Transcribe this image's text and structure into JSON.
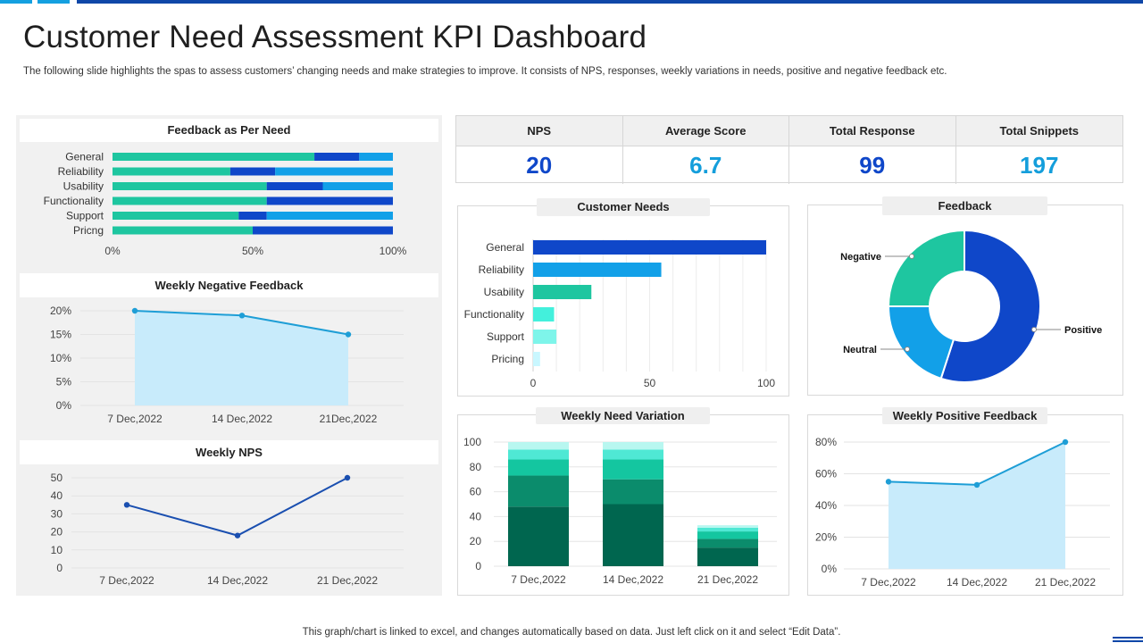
{
  "header": {
    "title": "Customer Need Assessment KPI Dashboard",
    "subtitle": "The following slide highlights the spas to assess customers’ changing needs and make strategies to improve. It consists of NPS, responses, weekly variations in needs, positive and negative feedback etc."
  },
  "colors": {
    "dark_blue": "#0f47c9",
    "mid_blue": "#12a0e8",
    "teal": "#1ec6a0",
    "cyan_light": "#43f0dc",
    "area_fill": "#c8ebfb",
    "line": "#1e9ed6",
    "nps_line": "#1a4fb0",
    "kpi_dark": "#0f47c9",
    "kpi_light": "#149edb"
  },
  "kpis": [
    {
      "label": "NPS",
      "value": "20",
      "color": "#0f47c9"
    },
    {
      "label": "Average Score",
      "value": "6.7",
      "color": "#149edb"
    },
    {
      "label": "Total Response",
      "value": "99",
      "color": "#0f47c9"
    },
    {
      "label": "Total Snippets",
      "value": "197",
      "color": "#149edb"
    }
  ],
  "sections": {
    "feedback_per_need": "Feedback as Per Need",
    "weekly_negative": "Weekly Negative Feedback",
    "weekly_nps": "Weekly NPS",
    "customer_needs": "Customer Needs",
    "feedback": "Feedback",
    "weekly_need_variation": "Weekly Need Variation",
    "weekly_positive": "Weekly Positive Feedback"
  },
  "footer": "This graph/chart is linked to excel,  and changes automatically based on data. Just left click on it and select “Edit Data”.",
  "chart_data": [
    {
      "id": "feedback_per_need",
      "type": "bar",
      "orientation": "horizontal-stacked-100",
      "title": "Feedback as Per Need",
      "categories": [
        "General",
        "Reliability",
        "Usability",
        "Functionality",
        "Support",
        "Pricng"
      ],
      "series": [
        {
          "name": "Series 1",
          "color": "#1ec6a0",
          "values": [
            72,
            42,
            55,
            55,
            45,
            50
          ]
        },
        {
          "name": "Series 2",
          "color": "#0f47c9",
          "values": [
            16,
            16,
            20,
            45,
            10,
            50
          ]
        },
        {
          "name": "Series 3",
          "color": "#12a0e8",
          "values": [
            12,
            42,
            25,
            0,
            45,
            0
          ]
        }
      ],
      "xticks": [
        "0%",
        "50%",
        "100%"
      ]
    },
    {
      "id": "weekly_negative",
      "type": "area",
      "title": "Weekly Negative Feedback",
      "categories": [
        "7 Dec,2022",
        "14 Dec,2022",
        "21Dec,2022"
      ],
      "values": [
        20,
        19,
        15
      ],
      "ylim": [
        0,
        20
      ],
      "yticks": [
        "0%",
        "5%",
        "10%",
        "15%",
        "20%"
      ]
    },
    {
      "id": "weekly_nps",
      "type": "line",
      "title": "Weekly NPS",
      "categories": [
        "7 Dec,2022",
        "14 Dec,2022",
        "21 Dec,2022"
      ],
      "values": [
        35,
        18,
        50
      ],
      "ylim": [
        0,
        50
      ],
      "yticks": [
        "0",
        "10",
        "20",
        "30",
        "40",
        "50"
      ]
    },
    {
      "id": "customer_needs",
      "type": "bar",
      "orientation": "horizontal",
      "title": "Customer Needs",
      "categories": [
        "General",
        "Reliability",
        "Usability",
        "Functionality",
        "Support",
        "Pricing"
      ],
      "values": [
        100,
        55,
        25,
        9,
        10,
        3
      ],
      "colors": [
        "#0f47c9",
        "#12a0e8",
        "#1ec6a0",
        "#43f0dc",
        "#7ef5ea",
        "#c9f7ff"
      ],
      "xlim": [
        0,
        100
      ],
      "xticks": [
        "0",
        "50",
        "100"
      ]
    },
    {
      "id": "feedback",
      "type": "pie",
      "title": "Feedback",
      "labels": [
        "Positive",
        "Neutral",
        "Negative"
      ],
      "values": [
        55,
        20,
        25
      ],
      "colors": [
        "#0f47c9",
        "#12a0e8",
        "#1ec6a0"
      ]
    },
    {
      "id": "weekly_need_variation",
      "type": "bar",
      "orientation": "vertical-stacked",
      "title": "Weekly Need Variation",
      "categories": [
        "7 Dec,2022",
        "14 Dec,2022",
        "21 Dec,2022"
      ],
      "series": [
        {
          "name": "Series 1",
          "color": "#00664f",
          "values": [
            48,
            50,
            15
          ]
        },
        {
          "name": "Series 2",
          "color": "#0b8c6c",
          "values": [
            25,
            20,
            7
          ]
        },
        {
          "name": "Series 3",
          "color": "#14c6a0",
          "values": [
            13,
            16,
            6
          ]
        },
        {
          "name": "Series 4",
          "color": "#4fe8d4",
          "values": [
            8,
            8,
            3
          ]
        },
        {
          "name": "Series 5",
          "color": "#b8f7f0",
          "values": [
            6,
            6,
            2
          ]
        }
      ],
      "ylim": [
        0,
        100
      ],
      "yticks": [
        "0",
        "20",
        "40",
        "60",
        "80",
        "100"
      ]
    },
    {
      "id": "weekly_positive",
      "type": "area",
      "title": "Weekly Positive Feedback",
      "categories": [
        "7 Dec,2022",
        "14 Dec,2022",
        "21 Dec,2022"
      ],
      "values": [
        55,
        53,
        80
      ],
      "ylim": [
        0,
        80
      ],
      "yticks": [
        "0%",
        "20%",
        "40%",
        "60%",
        "80%"
      ]
    }
  ]
}
